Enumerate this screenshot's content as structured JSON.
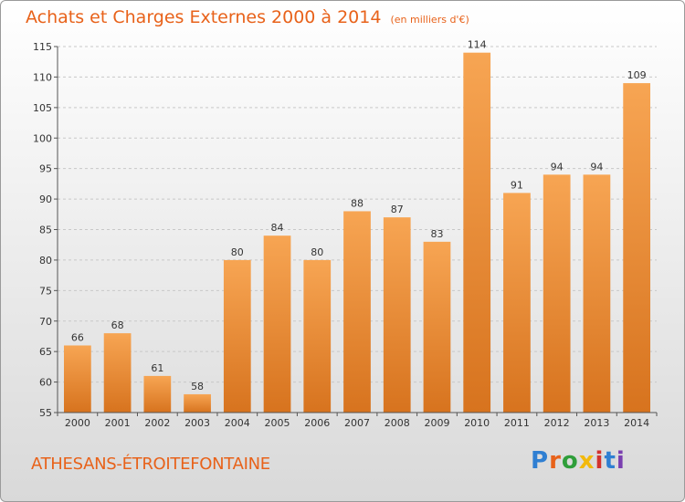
{
  "header": {
    "title": "Achats et Charges Externes 2000 à 2014",
    "subtitle": "(en milliers d'€)"
  },
  "footer": {
    "place": "ATHESANS-ÉTROITEFONTAINE",
    "logo": "Proxiti",
    "logo_colors": [
      "#2f7fd2",
      "#e8621a",
      "#2f9e3a",
      "#f2b90c",
      "#d2322f",
      "#2f7fd2",
      "#7a3fb0"
    ]
  },
  "colors": {
    "bar_top": "#f7a553",
    "bar_bottom": "#d7731e",
    "title": "#e8621a"
  },
  "chart_data": {
    "type": "bar",
    "title": "Achats et Charges Externes 2000 à 2014",
    "categories": [
      "2000",
      "2001",
      "2002",
      "2003",
      "2004",
      "2005",
      "2006",
      "2007",
      "2008",
      "2009",
      "2010",
      "2011",
      "2012",
      "2013",
      "2014"
    ],
    "values": [
      66,
      68,
      61,
      58,
      80,
      84,
      80,
      88,
      87,
      83,
      114,
      91,
      94,
      94,
      109
    ],
    "ylim": [
      55,
      115
    ],
    "yticks": [
      55,
      60,
      65,
      70,
      75,
      80,
      85,
      90,
      95,
      100,
      105,
      110,
      115
    ],
    "grid": true
  }
}
